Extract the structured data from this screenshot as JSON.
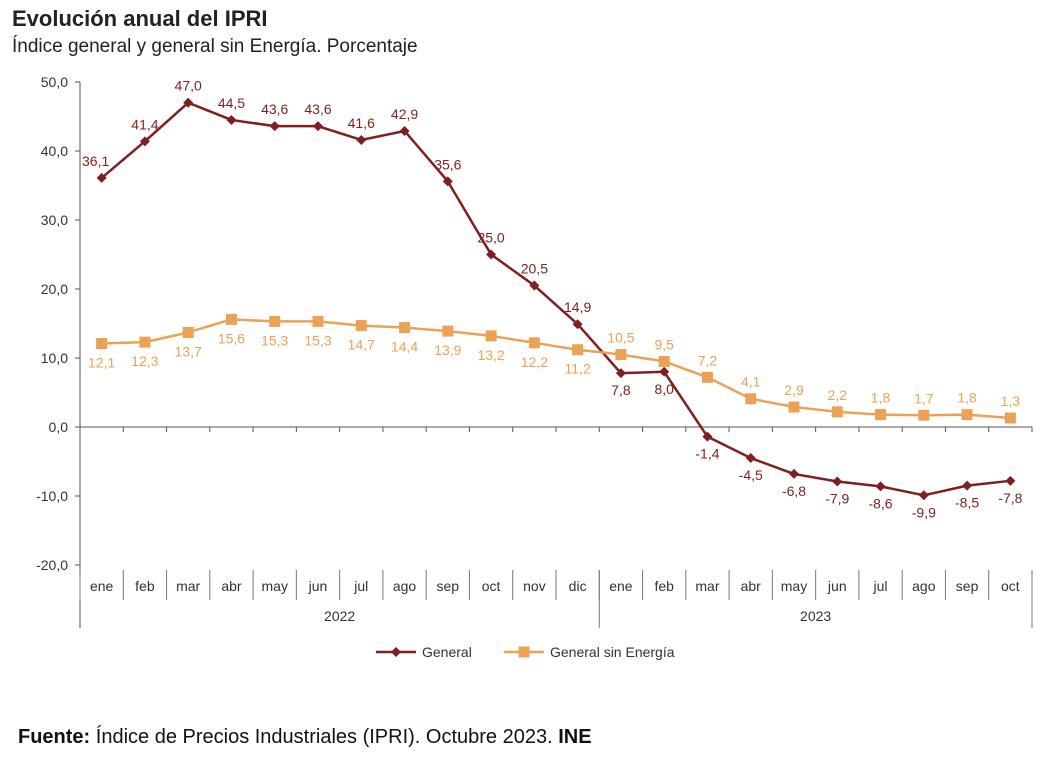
{
  "header": {
    "title": "Evolución anual del IPRI",
    "subtitle": "Índice general y general sin Energía. Porcentaje"
  },
  "source": {
    "prefix": "Fuente:",
    "text": " Índice de Precios Industriales (IPRI). Octubre 2023. ",
    "org": "INE"
  },
  "colors": {
    "general": "#7f1f1f",
    "sin_energia": "#eca256"
  },
  "chart_data": {
    "type": "line",
    "title": "Evolución anual del IPRI",
    "subtitle": "Índice general y general sin Energía. Porcentaje",
    "categories": [
      "ene",
      "feb",
      "mar",
      "abr",
      "may",
      "jun",
      "jul",
      "ago",
      "sep",
      "oct",
      "nov",
      "dic",
      "ene",
      "feb",
      "mar",
      "abr",
      "may",
      "jun",
      "jul",
      "ago",
      "sep",
      "oct"
    ],
    "category_groups": [
      {
        "label": "2022",
        "count": 12
      },
      {
        "label": "2023",
        "count": 10
      }
    ],
    "series": [
      {
        "name": "General",
        "marker": "diamond",
        "values": [
          36.1,
          41.4,
          47.0,
          44.5,
          43.6,
          43.6,
          41.6,
          42.9,
          35.6,
          25.0,
          20.5,
          14.9,
          7.8,
          8.0,
          -1.4,
          -4.5,
          -6.8,
          -7.9,
          -8.6,
          -9.9,
          -8.5,
          -7.8
        ],
        "labels": [
          "36,1",
          "41,4",
          "47,0",
          "44,5",
          "43,6",
          "43,6",
          "41,6",
          "42,9",
          "35,6",
          "25,0",
          "20,5",
          "14,9",
          "7,8",
          "8,0",
          "-1,4",
          "-4,5",
          "-6,8",
          "-7,9",
          "-8,6",
          "-9,9",
          "-8,5",
          "-7,8"
        ]
      },
      {
        "name": "General sin Energía",
        "marker": "square",
        "values": [
          12.1,
          12.3,
          13.7,
          15.6,
          15.3,
          15.3,
          14.7,
          14.4,
          13.9,
          13.2,
          12.2,
          11.2,
          10.5,
          9.5,
          7.2,
          4.1,
          2.9,
          2.2,
          1.8,
          1.7,
          1.8,
          1.3
        ],
        "labels": [
          "12,1",
          "12,3",
          "13,7",
          "15,6",
          "15,3",
          "15,3",
          "14,7",
          "14,4",
          "13,9",
          "13,2",
          "12,2",
          "11,2",
          "10,5",
          "9,5",
          "7,2",
          "4,1",
          "2,9",
          "2,2",
          "1,8",
          "1,7",
          "1,8",
          "1,3"
        ]
      }
    ],
    "ylim": [
      -20,
      50
    ],
    "yticks": [
      -20,
      -10,
      0,
      10,
      20,
      30,
      40,
      50
    ],
    "ytick_labels": [
      "-20,0",
      "-10,0",
      "0,0",
      "10,0",
      "20,0",
      "30,0",
      "40,0",
      "50,0"
    ],
    "grid": false,
    "legend": "bottom-center"
  }
}
